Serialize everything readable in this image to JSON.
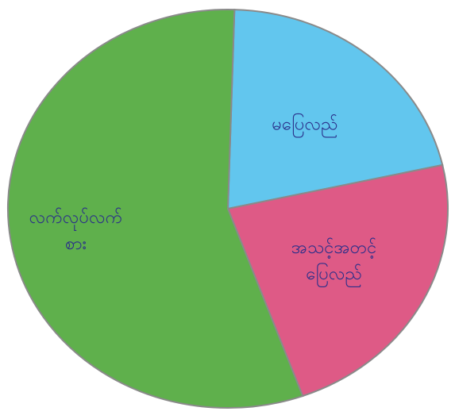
{
  "chart_data": {
    "type": "pie",
    "categories": [
      "မပြေလည်",
      "အသင့်အတင့် ပြေလည်",
      "လက်လုပ်လက် စား"
    ],
    "values": [
      21,
      23,
      56
    ],
    "colors": [
      "#62c6ee",
      "#de5a86",
      "#5fb04c"
    ]
  }
}
